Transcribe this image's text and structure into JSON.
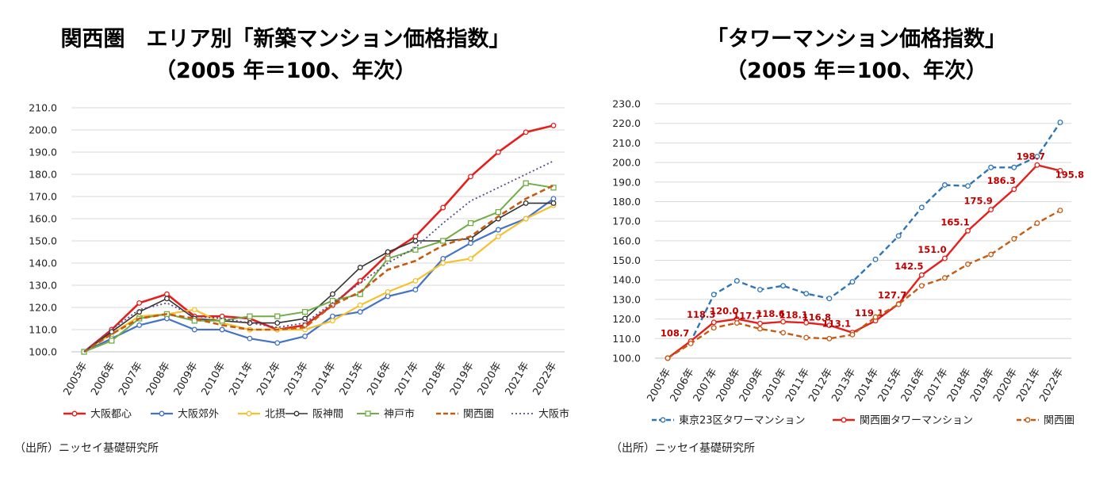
{
  "chart_data": [
    {
      "type": "line",
      "title": "関西圏　エリア別「新築マンション価格指数」",
      "subtitle": "（2005 年＝100、年次）",
      "source": "（出所）ニッセイ基礎研究所",
      "xlabel": "",
      "ylabel": "",
      "ylim": [
        100,
        210
      ],
      "y_ticks": [
        "100.0",
        "110.0",
        "120.0",
        "130.0",
        "140.0",
        "150.0",
        "160.0",
        "170.0",
        "180.0",
        "190.0",
        "200.0",
        "210.0"
      ],
      "categories": [
        "2005年",
        "2006年",
        "2007年",
        "2008年",
        "2009年",
        "2010年",
        "2011年",
        "2012年",
        "2013年",
        "2014年",
        "2015年",
        "2016年",
        "2017年",
        "2018年",
        "2019年",
        "2020年",
        "2021年",
        "2022年"
      ],
      "legend_position": "bottom",
      "grid": "horizontal",
      "series": [
        {
          "name": "大阪都心",
          "color": "#e3201c",
          "style": "solid",
          "marker": "circle",
          "width": 2.6,
          "values": [
            100,
            110,
            122,
            126,
            116,
            116,
            115,
            110,
            112,
            121,
            132,
            144,
            152,
            165,
            179,
            190,
            199,
            202
          ]
        },
        {
          "name": "大阪郊外",
          "color": "#4472c4",
          "style": "solid",
          "marker": "circle",
          "width": 2.2,
          "values": [
            100,
            106,
            112,
            115,
            110,
            110,
            106,
            104,
            107,
            116,
            118,
            125,
            128,
            142,
            149,
            155,
            160,
            169
          ]
        },
        {
          "name": "北摂",
          "color": "#f5c12e",
          "style": "solid",
          "marker": "circle",
          "width": 2.2,
          "values": [
            100,
            108,
            116,
            117,
            119,
            113,
            110,
            110,
            110,
            114,
            121,
            127,
            132,
            140,
            142,
            152,
            160,
            166
          ]
        },
        {
          "name": "阪神間",
          "color": "#333333",
          "style": "solid",
          "marker": "circle",
          "width": 1.6,
          "values": [
            100,
            109,
            118,
            124,
            115,
            114,
            113,
            113,
            115,
            126,
            138,
            145,
            150,
            150,
            151,
            160,
            167,
            167
          ]
        },
        {
          "name": "神戸市",
          "color": "#70ad47",
          "style": "solid",
          "marker": "square",
          "width": 2.0,
          "values": [
            100,
            105,
            115,
            117,
            114,
            114,
            116,
            116,
            118,
            123,
            126,
            142,
            146,
            150,
            158,
            163,
            176,
            174
          ]
        },
        {
          "name": "関西圏",
          "color": "#c55a11",
          "style": "dash",
          "marker": "none",
          "width": 2.6,
          "values": [
            100,
            108,
            115,
            117,
            115,
            112,
            110,
            110,
            111,
            121,
            127,
            137,
            141,
            148,
            152,
            161,
            169,
            175
          ]
        },
        {
          "name": "大阪市",
          "color": "#5c4b8a",
          "style": "dot",
          "marker": "none",
          "width": 1.8,
          "values": [
            100,
            110,
            119,
            122,
            116,
            115,
            113,
            111,
            113,
            122,
            131,
            140,
            147,
            158,
            168,
            174,
            180,
            186
          ]
        }
      ]
    },
    {
      "type": "line",
      "title": "「タワーマンション価格指数」",
      "subtitle": "（2005 年＝100、年次）",
      "source": "（出所）ニッセイ基礎研究所",
      "xlabel": "",
      "ylabel": "",
      "ylim": [
        100,
        230
      ],
      "y_ticks": [
        "100.0",
        "110.0",
        "120.0",
        "130.0",
        "140.0",
        "150.0",
        "160.0",
        "170.0",
        "180.0",
        "190.0",
        "200.0",
        "210.0",
        "220.0",
        "230.0"
      ],
      "categories": [
        "2005年",
        "2006年",
        "2007年",
        "2008年",
        "2009年",
        "2010年",
        "2011年",
        "2012年",
        "2013年",
        "2014年",
        "2015年",
        "2016年",
        "2017年",
        "2018年",
        "2019年",
        "2020年",
        "2021年",
        "2022年"
      ],
      "legend_position": "bottom",
      "grid": "horizontal",
      "series": [
        {
          "name": "東京23区タワーマンション",
          "color": "#2e75b6",
          "style": "dash",
          "marker": "circle",
          "width": 2.4,
          "values": [
            100,
            108.5,
            132.5,
            139.5,
            135,
            137,
            133,
            130.5,
            139,
            150.5,
            162.5,
            177,
            188.5,
            188,
            197.5,
            197.5,
            203,
            220.5
          ]
        },
        {
          "name": "関西圏タワーマンション",
          "color": "#e3201c",
          "style": "solid",
          "marker": "circle",
          "width": 2.4,
          "values": [
            100,
            108.7,
            118.3,
            120.0,
            117.7,
            118.6,
            118.1,
            116.8,
            113.1,
            119.1,
            127.7,
            142.5,
            151.0,
            165.1,
            175.9,
            186.3,
            198.7,
            195.8
          ],
          "data_labels": [
            "108.7",
            "118.3",
            "120.0",
            "117.7",
            "118.6",
            "118.1",
            "116.8",
            "113.1",
            "119.1",
            "127.7",
            "142.5",
            "151.0",
            "165.1",
            "175.9",
            "186.3",
            "198.7",
            "195.8"
          ]
        },
        {
          "name": "関西圏",
          "color": "#c55a11",
          "style": "dash",
          "marker": "circle",
          "width": 2.4,
          "values": [
            100,
            107.5,
            115.5,
            118,
            115,
            113,
            110.5,
            110,
            112,
            121,
            127.5,
            137,
            141,
            148,
            153,
            161,
            169,
            175.5
          ]
        }
      ]
    }
  ]
}
